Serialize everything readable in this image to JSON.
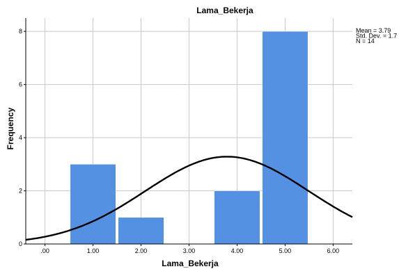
{
  "chart_data": {
    "type": "bar",
    "title": "Lama_Bekerja",
    "xlabel": "Lama_Bekerja",
    "ylabel": "Frequency",
    "xlim": [
      -0.4,
      6.4
    ],
    "ylim": [
      0,
      8.5
    ],
    "x_ticks": [
      0,
      1,
      2,
      3,
      4,
      5,
      6
    ],
    "x_tick_labels": [
      ".00",
      "1.00",
      "2.00",
      "3.00",
      "4.00",
      "5.00",
      "6.00"
    ],
    "y_ticks": [
      0,
      2,
      4,
      6,
      8
    ],
    "y_tick_labels": [
      "0",
      "2",
      "4",
      "6",
      "8"
    ],
    "bins": [
      {
        "center": 1,
        "width": 0.95,
        "value": 3
      },
      {
        "center": 2,
        "width": 0.95,
        "value": 1
      },
      {
        "center": 3,
        "width": 0.95,
        "value": 0
      },
      {
        "center": 4,
        "width": 0.95,
        "value": 2
      },
      {
        "center": 5,
        "width": 0.95,
        "value": 8
      }
    ],
    "normal_curve": {
      "mean": 3.79,
      "std_dev": 1.7,
      "n": 14,
      "bin_width": 1
    },
    "stats_lines": [
      "Mean = 3.79",
      "Std. Dev. = 1.7",
      "N = 14"
    ],
    "grid": true,
    "colors": {
      "bar": "#5591e3",
      "bar_edge": "#ffffff",
      "curve": "#000000",
      "grid": "#c8c8c8",
      "frame": "#000000"
    }
  }
}
